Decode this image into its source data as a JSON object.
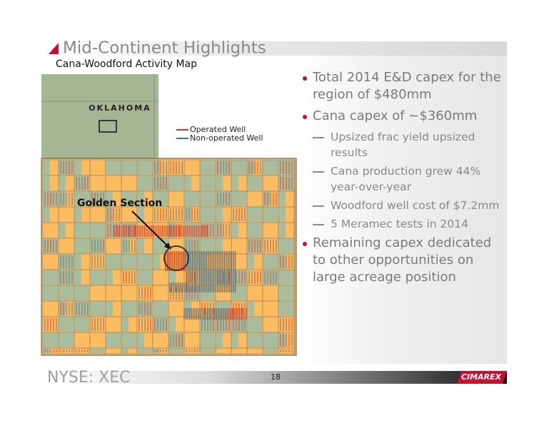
{
  "header": {
    "title": "Mid-Continent Highlights",
    "subtitle": "Cana-Woodford Activity Map"
  },
  "map": {
    "state_label": "OKLAHOMA",
    "legend": [
      "Operated Well",
      "Non-operated Well"
    ],
    "callout": "Golden Section"
  },
  "bullets": [
    {
      "text": "Total 2014 E&D capex for the region of $480mm",
      "subs": []
    },
    {
      "text": "Cana capex of ~$360mm",
      "subs": [
        "Upsized frac yield upsized results",
        "Cana production grew 44% year-over-year",
        "Woodford well cost of $7.2mm",
        "5 Meramec tests in 2014"
      ]
    },
    {
      "text": "Remaining capex dedicated to other opportunities on large acreage position",
      "subs": []
    }
  ],
  "footer": {
    "ticker": "NYSE: XEC",
    "page": "18",
    "logo": "CIMAREX"
  }
}
